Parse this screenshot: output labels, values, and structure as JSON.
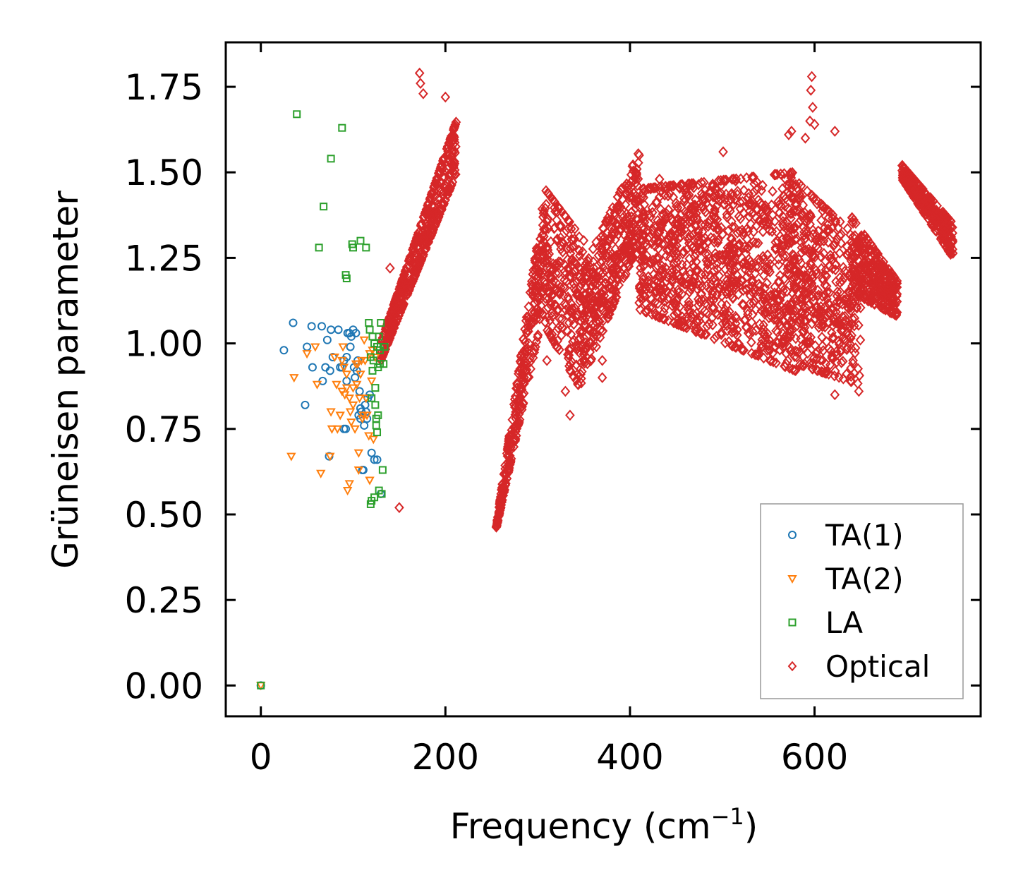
{
  "chart_data": {
    "type": "scatter",
    "xlabel": "Frequency (cm",
    "xlabel_sup": "−1",
    "xlabel_close": ")",
    "ylabel": "Grüneisen parameter",
    "xlim": [
      -38,
      780
    ],
    "ylim": [
      -0.09,
      1.88
    ],
    "x_ticks": [
      0,
      200,
      400,
      600
    ],
    "x_tick_labels": [
      "0",
      "200",
      "400",
      "600"
    ],
    "y_ticks": [
      0,
      0.25,
      0.5,
      0.75,
      1.0,
      1.25,
      1.5,
      1.75
    ],
    "y_tick_labels": [
      "0.00",
      "0.25",
      "0.50",
      "0.75",
      "1.00",
      "1.25",
      "1.50",
      "1.75"
    ],
    "legend_position": "lower-right",
    "series": [
      {
        "name": "TA(1)",
        "marker": "circle",
        "color": "#1f77b4",
        "points": [
          [
            0,
            0
          ],
          [
            25,
            0.98
          ],
          [
            35,
            1.06
          ],
          [
            48,
            0.82
          ],
          [
            50,
            0.99
          ],
          [
            55,
            1.05
          ],
          [
            56,
            0.93
          ],
          [
            66,
            1.05
          ],
          [
            67,
            0.89
          ],
          [
            70,
            0.93
          ],
          [
            72,
            1.01
          ],
          [
            74,
            0.67
          ],
          [
            75,
            0.92
          ],
          [
            76,
            1.04
          ],
          [
            78,
            0.96
          ],
          [
            84,
            1.04
          ],
          [
            86,
            0.93
          ],
          [
            88,
            0.93
          ],
          [
            90,
            0.95
          ],
          [
            90,
            0.75
          ],
          [
            92,
            0.75
          ],
          [
            93,
            0.96
          ],
          [
            93,
            0.89
          ],
          [
            94,
            1.03
          ],
          [
            96,
            1.03
          ],
          [
            97,
            0.99
          ],
          [
            98,
            1.02
          ],
          [
            100,
            1.04
          ],
          [
            101,
            0.93
          ],
          [
            102,
            0.9
          ],
          [
            103,
            1.03
          ],
          [
            104,
            0.92
          ],
          [
            105,
            0.95
          ],
          [
            106,
            0.79
          ],
          [
            107,
            0.86
          ],
          [
            108,
            0.78
          ],
          [
            108,
            0.81
          ],
          [
            109,
            0.8
          ],
          [
            110,
            0.63
          ],
          [
            111,
            0.63
          ],
          [
            112,
            0.76
          ],
          [
            113,
            0.82
          ],
          [
            114,
            0.8
          ],
          [
            115,
            0.78
          ],
          [
            116,
            0.84
          ],
          [
            118,
            0.85
          ],
          [
            120,
            0.68
          ],
          [
            123,
            0.66
          ],
          [
            126,
            0.66
          ],
          [
            130,
            0.56
          ]
        ]
      },
      {
        "name": "TA(2)",
        "marker": "triangle-down",
        "color": "#ff7f0e",
        "points": [
          [
            0,
            0
          ],
          [
            33,
            0.67
          ],
          [
            36,
            0.9
          ],
          [
            50,
            0.97
          ],
          [
            59,
            0.99
          ],
          [
            61,
            0.88
          ],
          [
            65,
            0.62
          ],
          [
            75,
            0.67
          ],
          [
            76,
            0.8
          ],
          [
            77,
            0.75
          ],
          [
            80,
            0.96
          ],
          [
            82,
            0.88
          ],
          [
            83,
            0.75
          ],
          [
            86,
            0.79
          ],
          [
            88,
            0.95
          ],
          [
            88,
            0.86
          ],
          [
            89,
            0.99
          ],
          [
            90,
            0.93
          ],
          [
            91,
            0.85
          ],
          [
            93,
            0.91
          ],
          [
            93,
            0.87
          ],
          [
            94,
            0.57
          ],
          [
            96,
            0.84
          ],
          [
            96,
            0.59
          ],
          [
            97,
            0.8
          ],
          [
            98,
            0.77
          ],
          [
            100,
            0.87
          ],
          [
            100,
            0.82
          ],
          [
            102,
            0.75
          ],
          [
            103,
            0.94
          ],
          [
            104,
            0.88
          ],
          [
            105,
            0.94
          ],
          [
            106,
            0.68
          ],
          [
            106,
            0.63
          ],
          [
            107,
            0.84
          ],
          [
            108,
            0.91
          ],
          [
            109,
            0.95
          ],
          [
            110,
            0.78
          ],
          [
            111,
            0.79
          ],
          [
            112,
            1.01
          ],
          [
            113,
            0.95
          ],
          [
            114,
            0.84
          ],
          [
            115,
            0.79
          ],
          [
            117,
            0.73
          ],
          [
            118,
            0.97
          ],
          [
            118,
            0.6
          ],
          [
            120,
            0.89
          ],
          [
            121,
            0.98
          ],
          [
            122,
            0.72
          ],
          [
            124,
            0.96
          ]
        ]
      },
      {
        "name": "LA",
        "marker": "square",
        "color": "#2ca02c",
        "points": [
          [
            0,
            0
          ],
          [
            39,
            1.67
          ],
          [
            63,
            1.28
          ],
          [
            68,
            1.4
          ],
          [
            76,
            1.54
          ],
          [
            88,
            1.63
          ],
          [
            92,
            1.2
          ],
          [
            93,
            1.19
          ],
          [
            99,
            1.29
          ],
          [
            100,
            1.28
          ],
          [
            108,
            1.3
          ],
          [
            114,
            1.28
          ],
          [
            117,
            1.06
          ],
          [
            118,
            1.04
          ],
          [
            119,
            0.96
          ],
          [
            119,
            0.53
          ],
          [
            120,
            0.84
          ],
          [
            120,
            0.54
          ],
          [
            121,
            1.02
          ],
          [
            121,
            0.92
          ],
          [
            122,
            0.95
          ],
          [
            123,
            1.0
          ],
          [
            123,
            0.55
          ],
          [
            124,
            0.87
          ],
          [
            124,
            0.82
          ],
          [
            125,
            0.78
          ],
          [
            125,
            0.76
          ],
          [
            126,
            0.99
          ],
          [
            126,
            0.74
          ],
          [
            127,
            0.79
          ],
          [
            127,
            0.93
          ],
          [
            128,
            0.57
          ],
          [
            128,
            1.02
          ],
          [
            129,
            0.98
          ],
          [
            129,
            0.94
          ],
          [
            130,
            1.06
          ],
          [
            131,
            0.56
          ],
          [
            132,
            0.63
          ],
          [
            133,
            0.94
          ],
          [
            134,
            0.99
          ]
        ]
      },
      {
        "name": "Optical",
        "marker": "diamond",
        "color": "#d62728",
        "points": []
      }
    ],
    "optical_bands": [
      {
        "x": [
          130,
          212
        ],
        "y_start": [
          0.95,
          1.0
        ],
        "y_end": [
          1.5,
          1.65
        ],
        "min_spread": 0.18,
        "max_spread": 0.3
      },
      {
        "x": [
          255,
          308
        ],
        "y_start": [
          0.46,
          0.46
        ],
        "y_end": [
          1.12,
          1.45
        ],
        "min_spread": 0.02,
        "max_spread": 0.32
      },
      {
        "x": [
          308,
          350
        ],
        "y_start": [
          1.05,
          1.45
        ],
        "y_end": [
          0.85,
          1.3
        ],
        "min_spread": 0.12,
        "max_spread": 0.25
      },
      {
        "x": [
          350,
          410
        ],
        "y_start": [
          0.9,
          1.22
        ],
        "y_end": [
          1.3,
          1.56
        ],
        "min_spread": 0.1,
        "max_spread": 0.22
      },
      {
        "x": [
          410,
          580
        ],
        "y_start": [
          1.1,
          1.45
        ],
        "y_end": [
          0.92,
          1.5
        ],
        "min_spread": 0.12,
        "max_spread": 0.25
      },
      {
        "x": [
          570,
          650
        ],
        "y_start": [
          0.95,
          1.5
        ],
        "y_end": [
          0.88,
          1.3
        ],
        "min_spread": 0.1,
        "max_spread": 0.25
      },
      {
        "x": [
          640,
          690
        ],
        "y_start": [
          1.15,
          1.37
        ],
        "y_end": [
          1.08,
          1.18
        ],
        "min_spread": 0.05,
        "max_spread": 0.12
      },
      {
        "x": [
          695,
          750
        ],
        "y_start": [
          1.48,
          1.52
        ],
        "y_end": [
          1.25,
          1.35
        ],
        "min_spread": 0.03,
        "max_spread": 0.08
      }
    ],
    "optical_outliers": [
      [
        172,
        1.79
      ],
      [
        176,
        1.73
      ],
      [
        173,
        1.76
      ],
      [
        200,
        1.72
      ],
      [
        597,
        1.78
      ],
      [
        596,
        1.74
      ],
      [
        598,
        1.69
      ],
      [
        595,
        1.65
      ],
      [
        600,
        1.64
      ],
      [
        622,
        1.62
      ],
      [
        575,
        1.62
      ],
      [
        572,
        1.61
      ],
      [
        150,
        0.52
      ],
      [
        140,
        1.22
      ],
      [
        335,
        0.79
      ],
      [
        330,
        0.86
      ],
      [
        310,
        0.95
      ],
      [
        370,
        0.9
      ],
      [
        370,
        0.95
      ],
      [
        432,
        1.48
      ],
      [
        501,
        1.56
      ],
      [
        410,
        1.55
      ],
      [
        648,
        0.86
      ],
      [
        622,
        0.85
      ],
      [
        682,
        1.09
      ],
      [
        590,
        1.6
      ]
    ]
  }
}
